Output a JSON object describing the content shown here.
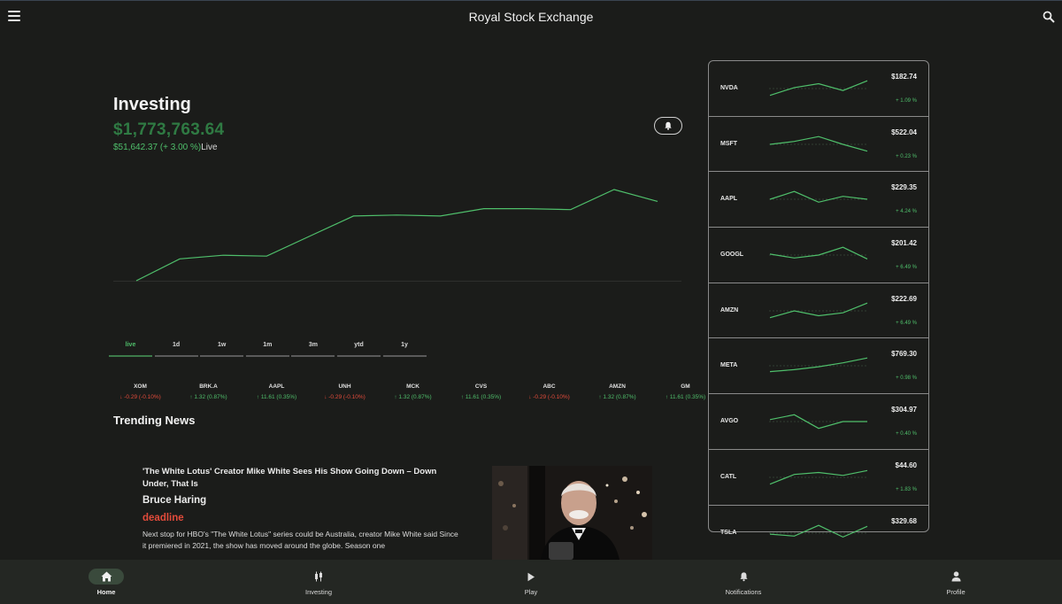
{
  "app": {
    "title": "Royal Stock Exchange"
  },
  "portfolio": {
    "heading": "Investing",
    "total": "$1,773,763.64",
    "change": "$51,642.37 (+ 3.00 %)",
    "live_label": "Live"
  },
  "range_tabs": [
    "live",
    "1d",
    "1w",
    "1m",
    "3m",
    "ytd",
    "1y"
  ],
  "active_range": "live",
  "chart_data": {
    "type": "line",
    "values": [
      0.0,
      0.24,
      0.28,
      0.27,
      0.49,
      0.71,
      0.72,
      0.71,
      0.79,
      0.79,
      0.78,
      1.0,
      0.87
    ],
    "color": "#4fbf6b"
  },
  "tickers": [
    {
      "symbol": "XOM",
      "change": "-0.29 (-0.10%)",
      "direction": "down"
    },
    {
      "symbol": "BRK.A",
      "change": "1.32 (0.87%)",
      "direction": "up"
    },
    {
      "symbol": "AAPL",
      "change": "11.61 (0.35%)",
      "direction": "up"
    },
    {
      "symbol": "UNH",
      "change": "-0.29 (-0.10%)",
      "direction": "down"
    },
    {
      "symbol": "MCK",
      "change": "1.32 (0.87%)",
      "direction": "up"
    },
    {
      "symbol": "CVS",
      "change": "11.61 (0.35%)",
      "direction": "up"
    },
    {
      "symbol": "ABC",
      "change": "-0.29 (-0.10%)",
      "direction": "down"
    },
    {
      "symbol": "AMZN",
      "change": "1.32 (0.87%)",
      "direction": "up"
    },
    {
      "symbol": "GM",
      "change": "11.61 (0.35%)",
      "direction": "up"
    }
  ],
  "news": {
    "heading": "Trending News",
    "article": {
      "headline": "'The White Lotus' Creator Mike White Sees His Show Going Down – Down Under, That Is",
      "author": "Bruce Haring",
      "source": "deadline",
      "summary": "Next stop for HBO's \"The White Lotus\" series could be Australia, creator Mike White said Since it premiered in 2021, the show has moved around the globe. Season one"
    }
  },
  "watchlist": [
    {
      "symbol": "NVDA",
      "price": "$182.74",
      "change": "+ 1.09 %",
      "spark": [
        0.15,
        0.55,
        0.75,
        0.4,
        0.9
      ]
    },
    {
      "symbol": "MSFT",
      "price": "$522.04",
      "change": "+ 0.23 %",
      "spark": [
        0.5,
        0.65,
        0.9,
        0.5,
        0.15
      ]
    },
    {
      "symbol": "AAPL",
      "price": "$229.35",
      "change": "+ 4.24 %",
      "spark": [
        0.5,
        0.9,
        0.35,
        0.65,
        0.5
      ]
    },
    {
      "symbol": "GOOGL",
      "price": "$201.42",
      "change": "+ 6.49 %",
      "spark": [
        0.55,
        0.35,
        0.5,
        0.9,
        0.3
      ]
    },
    {
      "symbol": "AMZN",
      "price": "$222.69",
      "change": "+ 6.49 %",
      "spark": [
        0.15,
        0.5,
        0.25,
        0.4,
        0.9
      ]
    },
    {
      "symbol": "META",
      "price": "$769.30",
      "change": "+ 0.98 %",
      "spark": [
        0.2,
        0.3,
        0.45,
        0.65,
        0.9
      ]
    },
    {
      "symbol": "AVGO",
      "price": "$304.97",
      "change": "+ 0.40 %",
      "spark": [
        0.6,
        0.85,
        0.15,
        0.5,
        0.5
      ]
    },
    {
      "symbol": "CATL",
      "price": "$44.60",
      "change": "+ 1.83 %",
      "spark": [
        0.15,
        0.65,
        0.75,
        0.6,
        0.85
      ]
    },
    {
      "symbol": "TSLA",
      "price": "$329.68",
      "change": "",
      "spark": [
        0.45,
        0.35,
        0.9,
        0.3,
        0.85
      ]
    }
  ],
  "nav": [
    {
      "label": "Home",
      "icon": "home-icon"
    },
    {
      "label": "Investing",
      "icon": "candlestick-icon"
    },
    {
      "label": "Play",
      "icon": "play-icon"
    },
    {
      "label": "Notifications",
      "icon": "bell-icon"
    },
    {
      "label": "Profile",
      "icon": "person-icon"
    }
  ],
  "active_nav": "Home",
  "colors": {
    "accent_green": "#4fbf6b",
    "dark_green": "#2f7a43",
    "down_red": "#e24b3b",
    "background": "#1b1c1a"
  }
}
